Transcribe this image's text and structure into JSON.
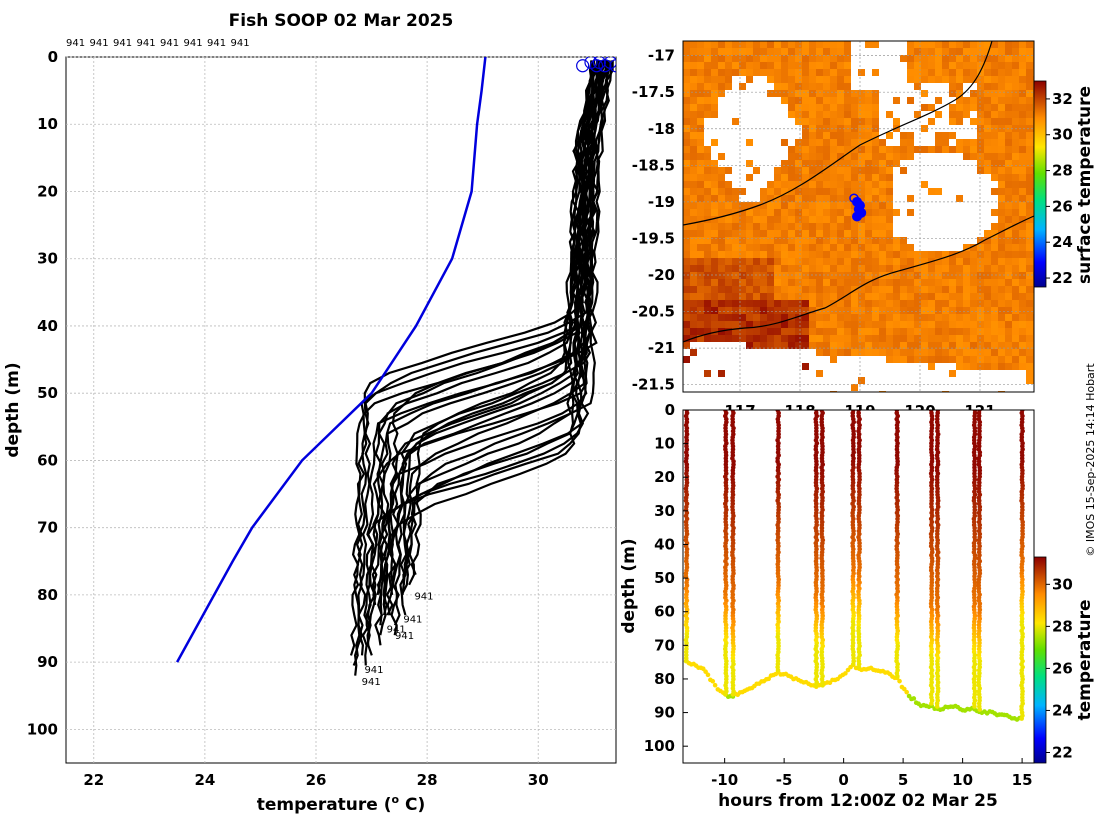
{
  "chart_data": [
    {
      "type": "line",
      "title": "Fish SOOP 02 Mar 2025",
      "xlabel_main": "temperature (",
      "xlabel_sup": "o",
      "xlabel_tail": " C)",
      "ylabel": "depth (m)",
      "xlim": [
        21.5,
        31.4
      ],
      "ylim": [
        0,
        105
      ],
      "xticks": [
        22,
        24,
        26,
        28,
        30
      ],
      "yticks": [
        0,
        10,
        20,
        30,
        40,
        50,
        60,
        70,
        80,
        90,
        100
      ],
      "top_labels": [
        "941",
        "941",
        "941",
        "941",
        "941",
        "941",
        "941",
        "941"
      ],
      "profile_id": "941",
      "end_labels": [
        "941",
        "941",
        "941",
        "941",
        "941",
        "941"
      ],
      "climatology": {
        "color": "#0000dd",
        "points": [
          [
            29.05,
            0
          ],
          [
            28.98,
            5
          ],
          [
            28.9,
            10
          ],
          [
            28.8,
            20
          ],
          [
            28.45,
            30
          ],
          [
            27.8,
            40
          ],
          [
            27.0,
            50
          ],
          [
            25.75,
            60
          ],
          [
            24.85,
            70
          ],
          [
            24.5,
            75
          ],
          [
            23.5,
            90
          ]
        ]
      },
      "profiles_note": "approx. 30 black XBT profiles, mixed ~30-31 C to 40-50 m then ~26.7-27.8 C to 80-92 m",
      "profiles": [
        {
          "surface": 31.0,
          "mid": 30.85,
          "ml": 36,
          "deep": 26.75,
          "bottom": 92
        },
        {
          "surface": 31.1,
          "mid": 30.95,
          "ml": 38,
          "deep": 26.7,
          "bottom": 91
        },
        {
          "surface": 31.05,
          "mid": 30.7,
          "ml": 40,
          "deep": 26.65,
          "bottom": 90
        },
        {
          "surface": 31.2,
          "mid": 30.9,
          "ml": 37,
          "deep": 26.8,
          "bottom": 89
        },
        {
          "surface": 31.25,
          "mid": 31.0,
          "ml": 42,
          "deep": 26.9,
          "bottom": 88
        },
        {
          "surface": 31.0,
          "mid": 30.6,
          "ml": 41,
          "deep": 27.0,
          "bottom": 86
        },
        {
          "surface": 31.1,
          "mid": 30.75,
          "ml": 43,
          "deep": 27.15,
          "bottom": 85
        },
        {
          "surface": 31.15,
          "mid": 30.8,
          "ml": 39,
          "deep": 27.3,
          "bottom": 84
        },
        {
          "surface": 31.3,
          "mid": 30.95,
          "ml": 44,
          "deep": 27.45,
          "bottom": 85
        },
        {
          "surface": 31.2,
          "mid": 30.65,
          "ml": 45,
          "deep": 27.55,
          "bottom": 83
        },
        {
          "surface": 31.05,
          "mid": 30.5,
          "ml": 46,
          "deep": 27.25,
          "bottom": 82
        },
        {
          "surface": 31.35,
          "mid": 30.9,
          "ml": 42,
          "deep": 27.1,
          "bottom": 81
        },
        {
          "surface": 31.1,
          "mid": 30.7,
          "ml": 47,
          "deep": 27.35,
          "bottom": 80
        },
        {
          "surface": 31.0,
          "mid": 30.55,
          "ml": 44,
          "deep": 27.7,
          "bottom": 79
        },
        {
          "surface": 31.2,
          "mid": 30.8,
          "ml": 48,
          "deep": 27.6,
          "bottom": 80
        },
        {
          "surface": 31.25,
          "mid": 30.6,
          "ml": 40,
          "deep": 27.05,
          "bottom": 82
        },
        {
          "surface": 31.15,
          "mid": 30.85,
          "ml": 50,
          "deep": 27.2,
          "bottom": 84
        },
        {
          "surface": 31.3,
          "mid": 30.7,
          "ml": 46,
          "deep": 27.4,
          "bottom": 86
        },
        {
          "surface": 31.05,
          "mid": 30.6,
          "ml": 52,
          "deep": 27.5,
          "bottom": 81
        },
        {
          "surface": 31.2,
          "mid": 30.9,
          "ml": 48,
          "deep": 26.95,
          "bottom": 90
        },
        {
          "surface": 31.1,
          "mid": 30.8,
          "ml": 55,
          "deep": 27.1,
          "bottom": 88
        },
        {
          "surface": 31.35,
          "mid": 31.0,
          "ml": 50,
          "deep": 27.75,
          "bottom": 78
        },
        {
          "surface": 31.0,
          "mid": 30.7,
          "ml": 54,
          "deep": 27.3,
          "bottom": 83
        },
        {
          "surface": 31.15,
          "mid": 30.75,
          "ml": 56,
          "deep": 26.85,
          "bottom": 91
        },
        {
          "surface": 31.25,
          "mid": 30.85,
          "ml": 53,
          "deep": 27.6,
          "bottom": 79
        },
        {
          "surface": 31.05,
          "mid": 30.65,
          "ml": 57,
          "deep": 27.2,
          "bottom": 86
        }
      ],
      "surface_markers_x": [
        30.8,
        30.95,
        31.05,
        31.1,
        31.2,
        31.3,
        31.4
      ]
    },
    {
      "type": "heatmap",
      "subtype": "map",
      "colorbar_label": "surface temperature",
      "xticks": [
        117,
        118,
        119,
        120,
        121
      ],
      "xtick_labels": [
        "117",
        "118",
        "119",
        "120",
        "121"
      ],
      "xlim": [
        116.05,
        121.9
      ],
      "yticks": [
        -17,
        -17.5,
        -18,
        -18.5,
        -19,
        -19.5,
        -20,
        -20.5,
        -21,
        -21.5
      ],
      "ytick_labels": [
        "-17",
        "-17.5",
        "-18",
        "-18.5",
        "-19",
        "-19.5",
        "-20",
        "-20.5",
        "-21",
        "-21.5"
      ],
      "ylim": [
        -21.6,
        -16.8
      ],
      "clim": [
        21.5,
        33
      ],
      "cticks": [
        22,
        24,
        26,
        28,
        30,
        32
      ],
      "ship_track": {
        "color": "#0000ff",
        "points": [
          [
            118.9,
            -18.95
          ],
          [
            118.95,
            -19.0
          ],
          [
            119.0,
            -19.05
          ],
          [
            118.98,
            -19.1
          ],
          [
            118.95,
            -19.2
          ],
          [
            119.02,
            -19.15
          ]
        ]
      }
    },
    {
      "type": "scatter",
      "subtype": "section",
      "xlabel": "hours from 12:00Z 02 Mar 25",
      "ylabel": "depth (m)",
      "colorbar_label": "temperature",
      "xlim": [
        -13.5,
        16
      ],
      "ylim": [
        0,
        105
      ],
      "xticks": [
        -10,
        -5,
        0,
        5,
        10,
        15
      ],
      "yticks": [
        0,
        10,
        20,
        30,
        40,
        50,
        60,
        70,
        80,
        90,
        100
      ],
      "clim": [
        21.5,
        31.3
      ],
      "cticks": [
        22,
        24,
        26,
        28,
        30
      ],
      "casts": [
        {
          "t": -13.2,
          "bottom": 75,
          "ml": 52
        },
        {
          "t": -9.9,
          "bottom": 85,
          "ml": 55
        },
        {
          "t": -9.3,
          "bottom": 85,
          "ml": 60
        },
        {
          "t": -5.5,
          "bottom": 78,
          "ml": 52
        },
        {
          "t": -2.3,
          "bottom": 82,
          "ml": 55
        },
        {
          "t": -1.8,
          "bottom": 82,
          "ml": 57
        },
        {
          "t": 0.8,
          "bottom": 76,
          "ml": 48
        },
        {
          "t": 1.3,
          "bottom": 77,
          "ml": 50
        },
        {
          "t": 4.5,
          "bottom": 80,
          "ml": 55
        },
        {
          "t": 7.4,
          "bottom": 88,
          "ml": 58
        },
        {
          "t": 7.9,
          "bottom": 89,
          "ml": 60
        },
        {
          "t": 11.0,
          "bottom": 89,
          "ml": 58
        },
        {
          "t": 11.4,
          "bottom": 90,
          "ml": 60
        },
        {
          "t": 15.0,
          "bottom": 92,
          "ml": 48
        }
      ],
      "bottom_trace": [
        [
          -13.2,
          75
        ],
        [
          -11.8,
          77
        ],
        [
          -10.8,
          82
        ],
        [
          -9.9,
          85
        ],
        [
          -9.3,
          85
        ],
        [
          -8.5,
          84
        ],
        [
          -7.5,
          82
        ],
        [
          -6.5,
          80
        ],
        [
          -5.5,
          78
        ],
        [
          -4.0,
          80
        ],
        [
          -2.3,
          82
        ],
        [
          -1.8,
          82
        ],
        [
          -0.5,
          80
        ],
        [
          0.8,
          76
        ],
        [
          1.3,
          77
        ],
        [
          2.5,
          77
        ],
        [
          3.5,
          78
        ],
        [
          4.5,
          80
        ],
        [
          5.5,
          85
        ],
        [
          6.5,
          88
        ],
        [
          7.4,
          88
        ],
        [
          7.9,
          89
        ],
        [
          9.0,
          88
        ],
        [
          10.0,
          89
        ],
        [
          11.0,
          89
        ],
        [
          11.4,
          90
        ],
        [
          12.5,
          90
        ],
        [
          13.5,
          91
        ],
        [
          15.0,
          92
        ]
      ]
    }
  ],
  "credit": "© IMOS 15-Sep-2025 14:14 Hobart"
}
